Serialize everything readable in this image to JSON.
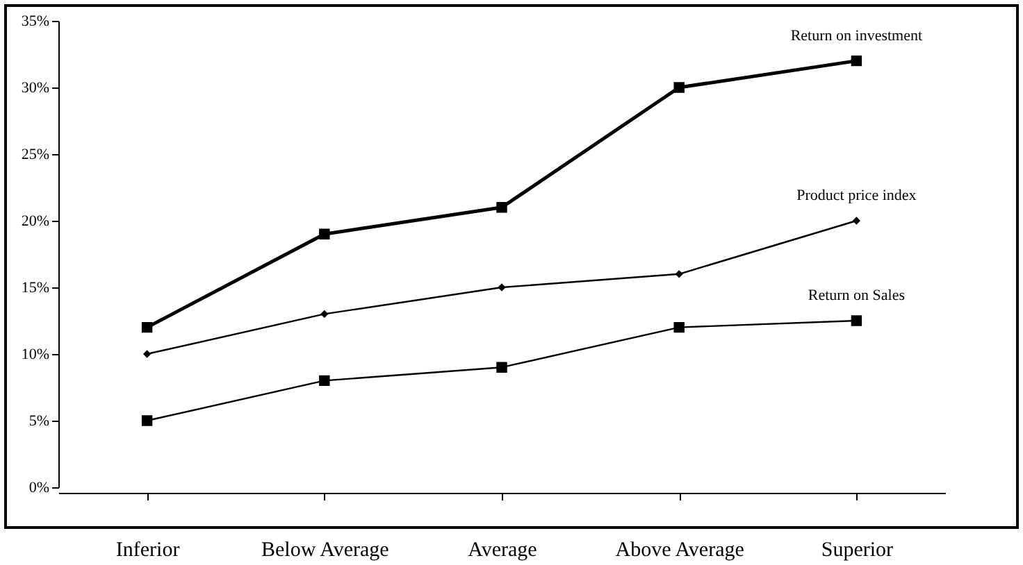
{
  "chart_data": {
    "type": "line",
    "categories": [
      "Inferior",
      "Below Average",
      "Average",
      "Above Average",
      "Superior"
    ],
    "series": [
      {
        "name": "Return on investment",
        "color": "#000000",
        "marker": "square",
        "values": [
          12,
          19,
          21,
          30,
          32
        ]
      },
      {
        "name": "Product price index",
        "color": "#000000",
        "marker": "diamond",
        "values": [
          10,
          13,
          15,
          16,
          20
        ]
      },
      {
        "name": "Return on Sales",
        "color": "#000000",
        "marker": "square",
        "values": [
          5,
          8,
          9,
          12,
          12.5
        ]
      }
    ],
    "ylim": [
      0,
      35
    ],
    "yticks": [
      {
        "value": 0,
        "label": "0%"
      },
      {
        "value": 5,
        "label": "5%"
      },
      {
        "value": 10,
        "label": "10%"
      },
      {
        "value": 15,
        "label": "15%"
      },
      {
        "value": 20,
        "label": "20%"
      },
      {
        "value": 25,
        "label": "25%"
      },
      {
        "value": 30,
        "label": "30%"
      },
      {
        "value": 35,
        "label": "35%"
      }
    ],
    "line_style": "solid"
  }
}
